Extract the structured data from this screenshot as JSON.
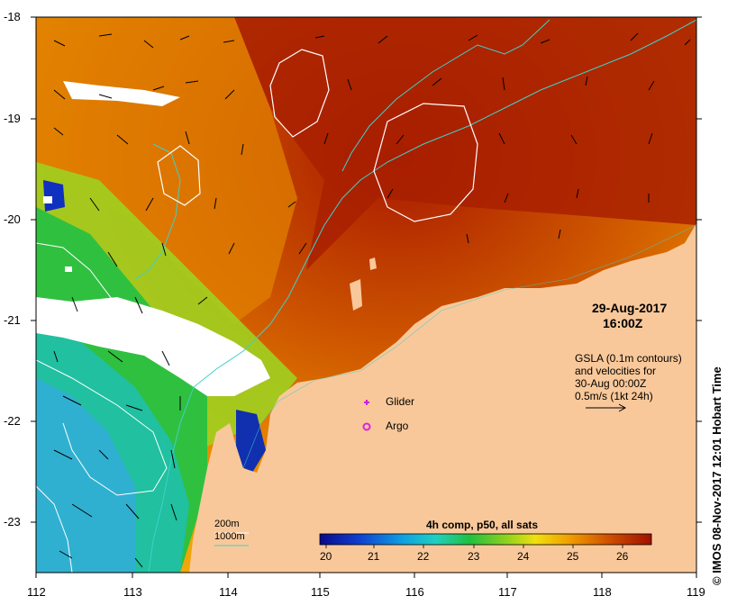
{
  "map": {
    "x_ticks": [
      "112",
      "113",
      "114",
      "115",
      "116",
      "117",
      "118",
      "119"
    ],
    "y_ticks": [
      "-18",
      "-19",
      "-20",
      "-21",
      "-22",
      "-23"
    ],
    "date_line": "29-Aug-2017",
    "time_line": "16:00Z",
    "gsla_lines": [
      "GSLA (0.1m contours)",
      "and velocities for",
      "30-Aug 00:00Z",
      "0.5m/s (1kt 24h)"
    ],
    "legend_glider": "Glider",
    "legend_argo": "Argo",
    "depth_200": "200m",
    "depth_1000": "1000m",
    "colorbar_title": "4h comp, p50, all sats",
    "colorbar_ticks": [
      "20",
      "21",
      "22",
      "23",
      "24",
      "25",
      "26"
    ],
    "credit": "© IMOS 08-Nov-2017 12:01 Hobart Time",
    "colors": {
      "land": "#f9c89a",
      "cloud": "#ffffff",
      "contour_gsla": "#ffffff",
      "contour_1000m": "#40d0c8",
      "glider_marker": "#d020d0",
      "argo_marker": "#e020e0"
    }
  }
}
